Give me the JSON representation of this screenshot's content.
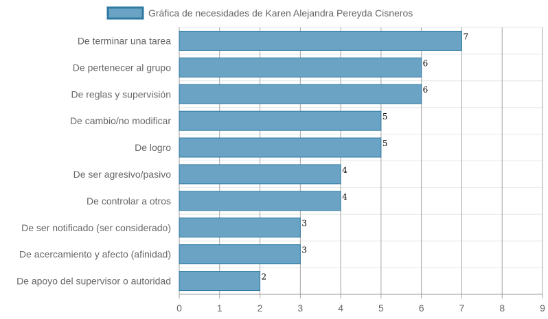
{
  "chart_data": {
    "type": "bar",
    "orientation": "horizontal",
    "title": "",
    "xlabel": "",
    "ylabel": "",
    "xlim": [
      0,
      9
    ],
    "x_ticks": [
      0,
      1,
      2,
      3,
      4,
      5,
      6,
      7,
      8,
      9
    ],
    "grid": true,
    "legend_position": "top",
    "categories": [
      "De terminar una tarea",
      "De pertenecer al grupo",
      "De reglas y supervisión",
      "De cambio/no modificar",
      "De logro",
      "De ser agresivo/pasivo",
      "De controlar a otros",
      "De ser notificado (ser considerado)",
      "De acercamiento y afecto (afinidad)",
      "De apoyo del supervisor o autoridad"
    ],
    "series": [
      {
        "name": "Gráfica de necesidades de Karen Alejandra Pereyda Cisneros",
        "color": "#6aa3c4",
        "border_color": "#2f7aa3",
        "values": [
          7,
          6,
          6,
          5,
          5,
          4,
          4,
          3,
          3,
          2
        ]
      }
    ]
  }
}
